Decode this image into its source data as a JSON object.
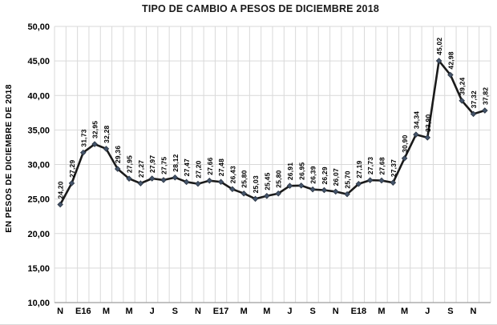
{
  "chart_data": {
    "type": "line",
    "title": "TIPO DE CAMBIO A PESOS DE DICIEMBRE 2018",
    "xlabel": "",
    "ylabel": "EN PESOS DE DICIEMBRE DE 2018",
    "ylim": [
      10,
      50
    ],
    "grid": true,
    "legend": "none",
    "values": [
      24.2,
      27.29,
      31.73,
      32.95,
      32.28,
      29.36,
      27.95,
      27.27,
      27.97,
      27.75,
      28.12,
      27.47,
      27.2,
      27.66,
      27.48,
      26.43,
      25.8,
      25.03,
      25.45,
      25.8,
      26.91,
      26.95,
      26.39,
      26.29,
      26.07,
      25.7,
      27.19,
      27.73,
      27.68,
      27.37,
      30.9,
      34.34,
      33.9,
      45.02,
      42.98,
      39.24,
      37.32,
      37.82
    ],
    "data_labels": [
      "24,20",
      "27,29",
      "31,73",
      "32,95",
      "32,28",
      "29,36",
      "27,95",
      "27,27",
      "27,97",
      "27,75",
      "28,12",
      "27,47",
      "27,20",
      "27,66",
      "27,48",
      "26,43",
      "25,80",
      "25,03",
      "25,45",
      "25,80",
      "26,91",
      "26,95",
      "26,39",
      "26,29",
      "26,07",
      "25,70",
      "27,19",
      "27,73",
      "27,68",
      "27,37",
      "30,90",
      "34,34",
      "33,90",
      "45,02",
      "42,98",
      "39,24",
      "37,32",
      "37,82"
    ],
    "y_ticks": [
      {
        "v": 50,
        "label": "50,00"
      },
      {
        "v": 45,
        "label": "45,00"
      },
      {
        "v": 40,
        "label": "40,00"
      },
      {
        "v": 35,
        "label": "35,00"
      },
      {
        "v": 30,
        "label": "30,00"
      },
      {
        "v": 25,
        "label": "25,00"
      },
      {
        "v": 20,
        "label": "20,00"
      },
      {
        "v": 15,
        "label": "15,00"
      },
      {
        "v": 10,
        "label": "10,00"
      }
    ],
    "x_ticks": [
      {
        "index": 0,
        "label": "N"
      },
      {
        "index": 2,
        "label": "E16"
      },
      {
        "index": 4,
        "label": "M"
      },
      {
        "index": 6,
        "label": "M"
      },
      {
        "index": 8,
        "label": "J"
      },
      {
        "index": 10,
        "label": "S"
      },
      {
        "index": 12,
        "label": "N"
      },
      {
        "index": 14,
        "label": "E17"
      },
      {
        "index": 16,
        "label": "M"
      },
      {
        "index": 18,
        "label": "M"
      },
      {
        "index": 20,
        "label": "J"
      },
      {
        "index": 22,
        "label": "S"
      },
      {
        "index": 24,
        "label": "N"
      },
      {
        "index": 26,
        "label": "E18"
      },
      {
        "index": 28,
        "label": "M"
      },
      {
        "index": 30,
        "label": "M"
      },
      {
        "index": 32,
        "label": "J"
      },
      {
        "index": 34,
        "label": "S"
      },
      {
        "index": 36,
        "label": "N"
      }
    ],
    "colors": {
      "line": "#1a1a1a",
      "marker": "#44546a",
      "marker_outline": "#2a3442",
      "grid": "#d9d9d9",
      "axis": "#9e9e9e",
      "text": "#000000"
    }
  }
}
